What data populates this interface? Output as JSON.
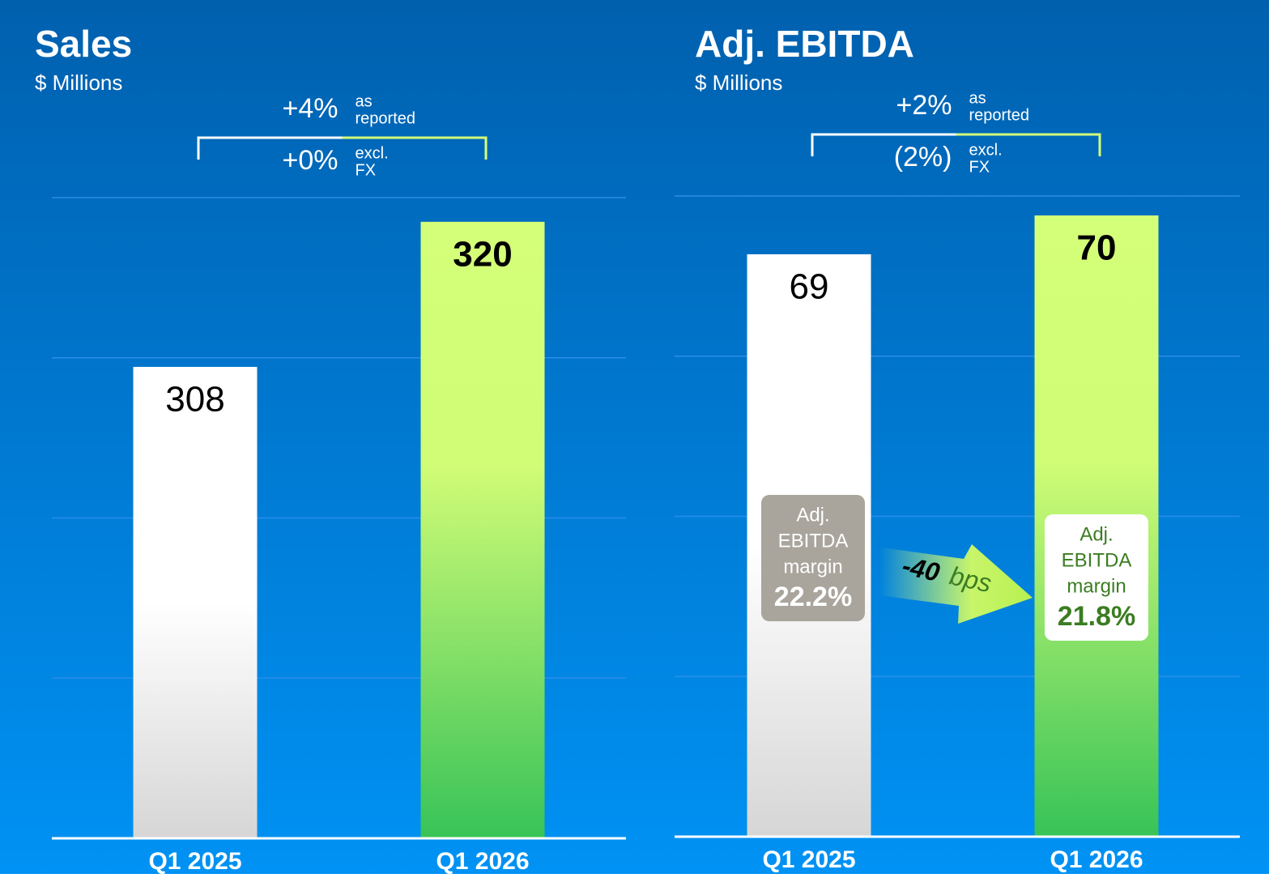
{
  "chart_data": [
    {
      "type": "bar",
      "title": "Sales",
      "subtitle": "$ Millions",
      "categories": [
        "Q1 2025",
        "Q1 2026"
      ],
      "values": [
        308,
        320
      ],
      "colors": [
        "#ffffff",
        "#d4ff78"
      ],
      "ylim": [
        269,
        322
      ],
      "grid": true,
      "growth": [
        {
          "value": "+4%",
          "note": [
            "as",
            "reported"
          ]
        },
        {
          "value": "+0%",
          "note": [
            "excl.",
            "FX"
          ]
        }
      ]
    },
    {
      "type": "bar",
      "title": "Adj. EBITDA",
      "subtitle": "$ Millions",
      "categories": [
        "Q1 2025",
        "Q1 2026"
      ],
      "values": [
        69,
        70
      ],
      "colors": [
        "#ffffff",
        "#d4ff78"
      ],
      "ylim": [
        54,
        70.5
      ],
      "grid": true,
      "growth": [
        {
          "value": "+2%",
          "note": [
            "as",
            "reported"
          ]
        },
        {
          "value": "(2%)",
          "note": [
            "excl.",
            "FX"
          ]
        }
      ],
      "margin_label": [
        "Adj.",
        "EBITDA",
        "margin"
      ],
      "margin_values": [
        22.2,
        21.8
      ],
      "margin_value_labels": [
        "22.2%",
        "21.8%"
      ],
      "margin_change": [
        "-40",
        "bps"
      ]
    }
  ]
}
